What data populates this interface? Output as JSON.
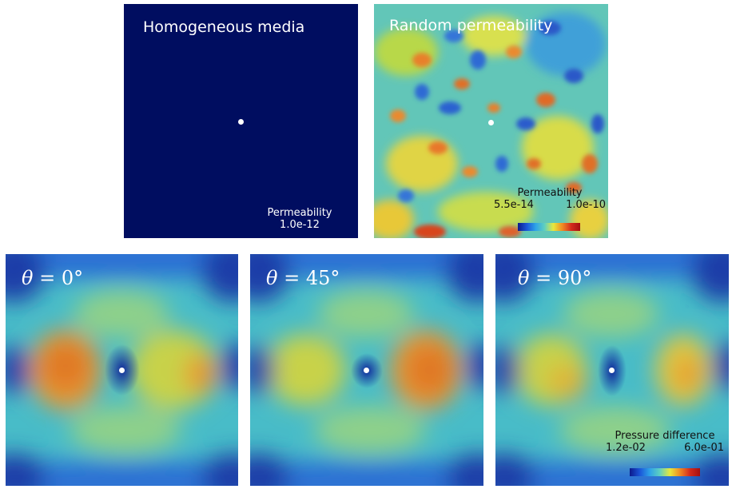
{
  "panels": {
    "homogeneous": {
      "title": "Homogeneous media",
      "legend_title": "Permeability",
      "legend_value": "1.0e-12",
      "fill_color": "#000d60"
    },
    "random": {
      "title": "Random permeability",
      "legend_title": "Permeability",
      "legend_min": "5.5e-14",
      "legend_max": "1.0e-10"
    },
    "pressure": [
      {
        "theta_symbol": "θ",
        "theta_value": "= 0°"
      },
      {
        "theta_symbol": "θ",
        "theta_value": "= 45°"
      },
      {
        "theta_symbol": "θ",
        "theta_value": "= 90°"
      }
    ],
    "pressure_legend": {
      "title": "Pressure difference",
      "min": "1.2e-02",
      "max": "6.0e-01"
    }
  },
  "colors": {
    "colormap": [
      "#0c1a8c",
      "#1a55d8",
      "#2ea3e8",
      "#5fd0c0",
      "#e8e83c",
      "#f08a22",
      "#d42a1c",
      "#a50f12"
    ],
    "background_field": "#4cc0c8",
    "well": "#ffffff"
  }
}
